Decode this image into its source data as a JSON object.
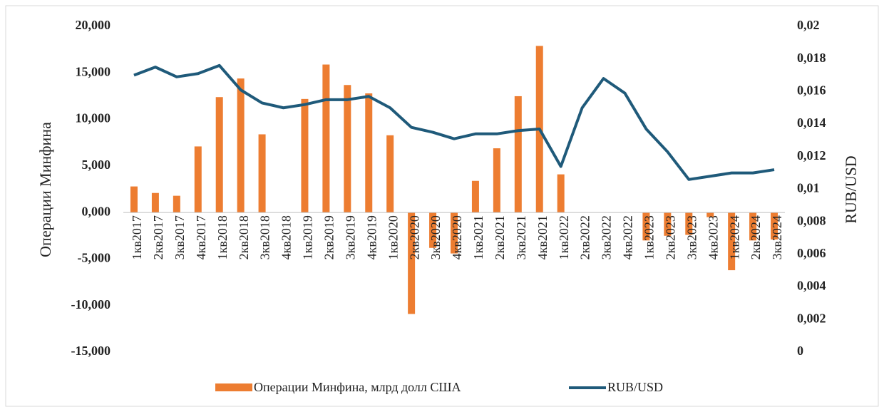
{
  "chart_data": {
    "type": "bar_line",
    "categories": [
      "1кв2017",
      "2кв2017",
      "3кв2017",
      "4кв2017",
      "1кв2018",
      "2кв2018",
      "3кв2018",
      "4кв2018",
      "1кв2019",
      "2кв2019",
      "3кв2019",
      "4кв2019",
      "1кв2020",
      "2кв2020",
      "3кв2020",
      "4кв2020",
      "1кв2021",
      "2кв2021",
      "3кв2021",
      "4кв2021",
      "1кв2022",
      "2кв2022",
      "3кв2022",
      "4кв2022",
      "1кв2023",
      "2кв2023",
      "3кв2023",
      "4кв2023",
      "1кв2024",
      "2кв2024",
      "3кв2024"
    ],
    "series": [
      {
        "name": "Операции Минфина, млрд долл США",
        "color": "#ed7d31",
        "type": "bar",
        "values": [
          2.8,
          2.1,
          1.8,
          7.1,
          12.4,
          14.4,
          8.4,
          0,
          12.2,
          15.9,
          13.7,
          12.8,
          8.3,
          -10.9,
          -3.8,
          -4.4,
          3.4,
          6.9,
          12.5,
          17.9,
          4.1,
          0,
          0,
          0,
          -3.0,
          -2.5,
          -2.4,
          -0.5,
          -6.2,
          -3.0,
          -2.9
        ]
      },
      {
        "name": "RUB/USD",
        "color": "#1f5a7a",
        "type": "line",
        "axis": "y2",
        "values": [
          0.017,
          0.0175,
          0.0169,
          0.0171,
          0.0176,
          0.0161,
          0.0153,
          0.015,
          0.0152,
          0.0155,
          0.0155,
          0.0157,
          0.015,
          0.0138,
          0.0135,
          0.0131,
          0.0134,
          0.0134,
          0.0136,
          0.0137,
          0.0114,
          0.015,
          0.0168,
          0.0159,
          0.0137,
          0.0123,
          0.0106,
          0.0108,
          0.011,
          0.011,
          0.0112
        ]
      }
    ],
    "ylabel": "Операции Минфина",
    "y2label": "RUB/USD",
    "ylim": [
      -15,
      20
    ],
    "yticks": [
      {
        "value": 20,
        "label": "20,000"
      },
      {
        "value": 15,
        "label": "15,000"
      },
      {
        "value": 10,
        "label": "10,000"
      },
      {
        "value": 5,
        "label": "5,000"
      },
      {
        "value": 0,
        "label": "0,000"
      },
      {
        "value": -5,
        "label": "-5,000"
      },
      {
        "value": -10,
        "label": "-10,000"
      },
      {
        "value": -15,
        "label": "-15,000"
      }
    ],
    "y2lim": [
      0,
      0.02
    ],
    "y2ticks": [
      {
        "value": 0.02,
        "label": "0,02"
      },
      {
        "value": 0.018,
        "label": "0,018"
      },
      {
        "value": 0.016,
        "label": "0,016"
      },
      {
        "value": 0.014,
        "label": "0,014"
      },
      {
        "value": 0.012,
        "label": "0,012"
      },
      {
        "value": 0.01,
        "label": "0,01"
      },
      {
        "value": 0.008,
        "label": "0,008"
      },
      {
        "value": 0.006,
        "label": "0,006"
      },
      {
        "value": 0.004,
        "label": "0,004"
      },
      {
        "value": 0.002,
        "label": "0,002"
      },
      0
    ],
    "legend": "bottom",
    "grid": false
  }
}
